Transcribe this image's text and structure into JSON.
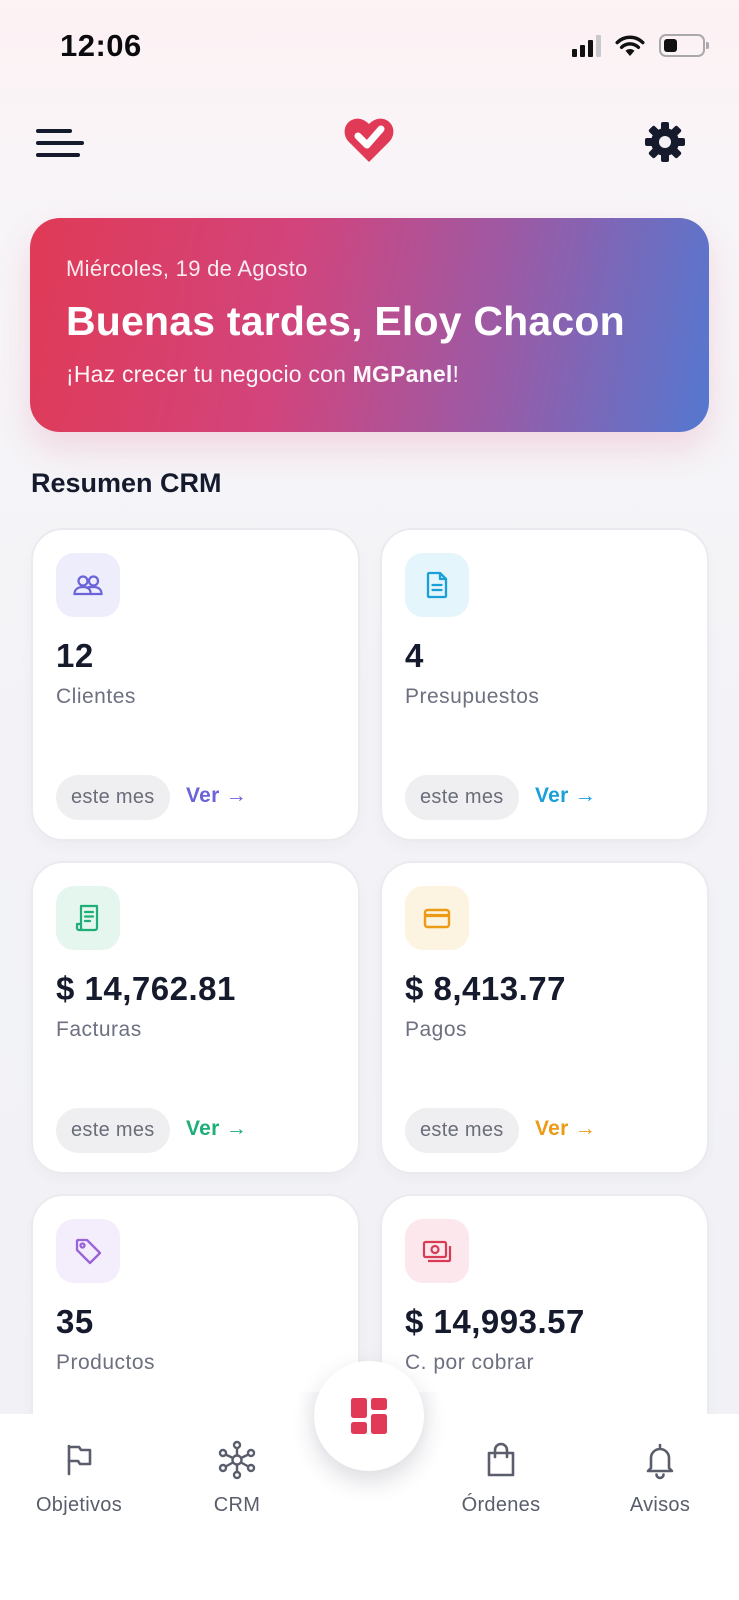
{
  "status_bar": {
    "time": "12:06"
  },
  "greeting": {
    "date": "Miércoles, 19 de Agosto",
    "title": "Buenas tardes, Eloy Chacon",
    "subtitle_prefix": "¡Haz crecer tu negocio con ",
    "subtitle_brand": "MGPanel",
    "subtitle_suffix": "!"
  },
  "section": {
    "title": "Resumen CRM"
  },
  "cards": [
    {
      "value": "12",
      "label": "Clientes",
      "period": "este mes",
      "link": "Ver →",
      "icon": "users-icon",
      "accent": "#6b63d8",
      "icon_bg": "#eeedfb"
    },
    {
      "value": "4",
      "label": "Presupuestos",
      "period": "este mes",
      "link": "Ver →",
      "icon": "document-icon",
      "accent": "#1aa0d8",
      "icon_bg": "#e5f5fc"
    },
    {
      "value": "$ 14,762.81",
      "label": "Facturas",
      "period": "este mes",
      "link": "Ver →",
      "icon": "receipt-icon",
      "accent": "#1fae78",
      "icon_bg": "#e4f6ee"
    },
    {
      "value": "$ 8,413.77",
      "label": "Pagos",
      "period": "este mes",
      "link": "Ver →",
      "icon": "credit-card-icon",
      "accent": "#eb9b16",
      "icon_bg": "#fdf3e1"
    },
    {
      "value": "35",
      "label": "Productos",
      "icon": "tag-icon",
      "accent": "#9b63d8",
      "icon_bg": "#f3edfc"
    },
    {
      "value": "$ 14,993.57",
      "label": "C. por cobrar",
      "icon": "money-icon",
      "accent": "#d93a55",
      "icon_bg": "#fce8ec"
    }
  ],
  "bottom_nav": {
    "items": [
      {
        "label": "Objetivos",
        "icon": "flag-icon"
      },
      {
        "label": "CRM",
        "icon": "network-icon"
      },
      {
        "label": "Órdenes",
        "icon": "shopping-bag-icon"
      },
      {
        "label": "Avisos",
        "icon": "bell-icon"
      }
    ],
    "center_icon": "dashboard-icon"
  },
  "colors": {
    "brand": "#e03a56",
    "text_dark": "#151a2d",
    "text_muted": "#6d7080"
  }
}
